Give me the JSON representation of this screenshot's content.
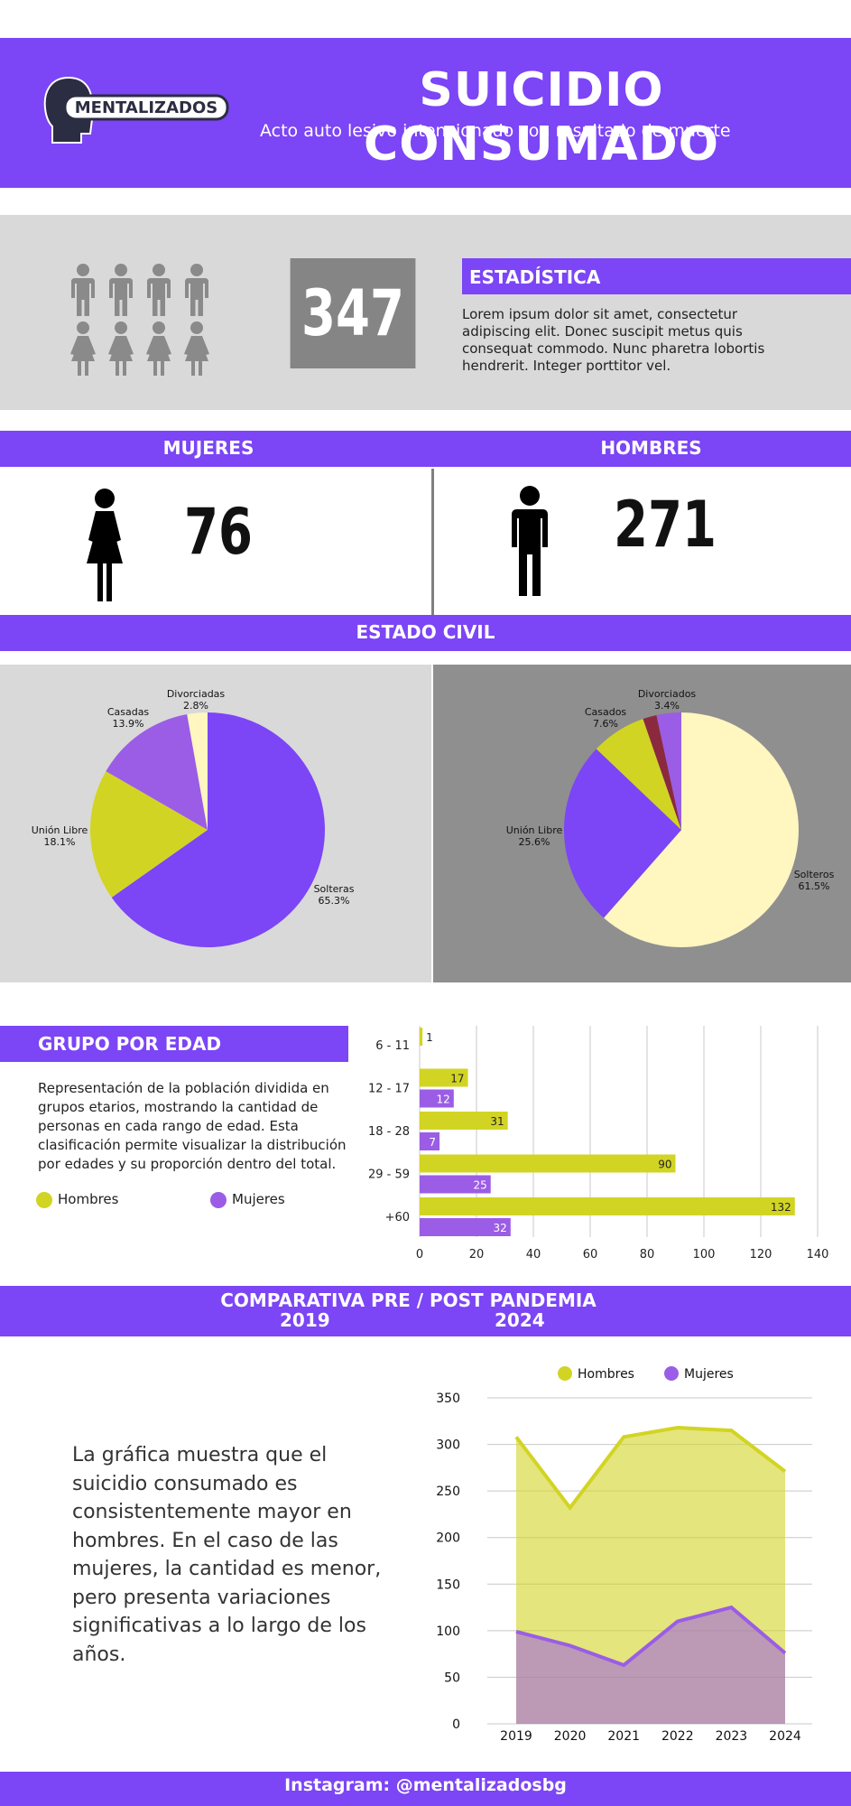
{
  "header": {
    "logo_text": "MENTALIZADOS",
    "title": "SUICIDIO CONSUMADO",
    "subtitle": "Acto auto lesivo intencionado con resultado de muerte"
  },
  "stats": {
    "total": "347",
    "heading": "ESTADÍSTICA",
    "text": "Lorem ipsum dolor sit amet, consectetur adipiscing elit. Donec suscipit metus quis consequat commodo. Nunc pharetra lobortis hendrerit. Integer porttitor vel."
  },
  "sex": {
    "women_label": "MUJERES",
    "women_count": "76",
    "men_label": "HOMBRES",
    "men_count": "271"
  },
  "civil": {
    "heading": "ESTADO CIVIL"
  },
  "age": {
    "heading": "GRUPO POR EDAD",
    "text": "Representación de la población dividida en grupos etarios, mostrando la cantidad de personas en cada rango de edad. Esta clasificación permite visualizar la distribución por edades y su proporción dentro del total.",
    "legend_men": "Hombres",
    "legend_women": "Mujeres"
  },
  "comparison": {
    "title": "COMPARATIVA PRE / POST PANDEMIA",
    "year_start": "2019",
    "year_end": "2024",
    "text": "La gráfica muestra que el suicidio consumado es consistentemente mayor en hombres. En el caso de las mujeres, la cantidad es menor, pero presenta variaciones significativas a lo largo de los años."
  },
  "footer": {
    "text": "Instagram: @mentalizadosbg"
  },
  "colors": {
    "purple": "#7c45f5",
    "lime": "#d2d424",
    "cream": "#fff6c0",
    "dark_red": "#8b2a3e",
    "light_purple": "#9b5de5"
  },
  "chart_data": [
    {
      "type": "pie",
      "title": "",
      "labels": [
        "Solteras",
        "Unión Libre",
        "Casadas",
        "Divorciadas"
      ],
      "values": [
        65.3,
        18.1,
        13.9,
        2.8
      ],
      "value_labels": [
        "65.3%",
        "18.1%",
        "13.9%",
        "2.8%"
      ],
      "colors": [
        "#7c45f5",
        "#d2d424",
        "#9b5de5",
        "#fff6c0"
      ]
    },
    {
      "type": "pie",
      "title": "",
      "labels": [
        "Solteros",
        "Unión Libre",
        "Casados",
        "",
        "Divorciados"
      ],
      "values": [
        61.5,
        25.6,
        7.6,
        1.9,
        3.4
      ],
      "value_labels": [
        "61.5%",
        "25.6%",
        "7.6%",
        "",
        "3.4%"
      ],
      "colors": [
        "#fff6c0",
        "#7c45f5",
        "#d2d424",
        "#8b2a3e",
        "#9b5de5"
      ]
    },
    {
      "type": "bar",
      "orientation": "horizontal",
      "categories": [
        "6 - 11",
        "12 - 17",
        "18 - 28",
        "29 - 59",
        "+60"
      ],
      "series": [
        {
          "name": "Hombres",
          "values": [
            1,
            17,
            31,
            90,
            132
          ]
        },
        {
          "name": "Mujeres",
          "values": [
            null,
            12,
            7,
            25,
            32
          ]
        }
      ],
      "xlim": [
        0,
        140
      ],
      "xticks": [
        "0",
        "20",
        "40",
        "60",
        "80",
        "100",
        "120",
        "140"
      ],
      "grid": true
    },
    {
      "type": "area",
      "x": [
        "2019",
        "2020",
        "2021",
        "2022",
        "2023",
        "2024"
      ],
      "series": [
        {
          "name": "Hombres",
          "values": [
            308,
            232,
            308,
            318,
            315,
            271
          ]
        },
        {
          "name": "Mujeres",
          "values": [
            99,
            84,
            63,
            110,
            125,
            76
          ]
        }
      ],
      "ylim": [
        0,
        350
      ],
      "yticks": [
        "0",
        "50",
        "100",
        "150",
        "200",
        "250",
        "300",
        "350"
      ],
      "legend": "top",
      "grid": true
    }
  ]
}
